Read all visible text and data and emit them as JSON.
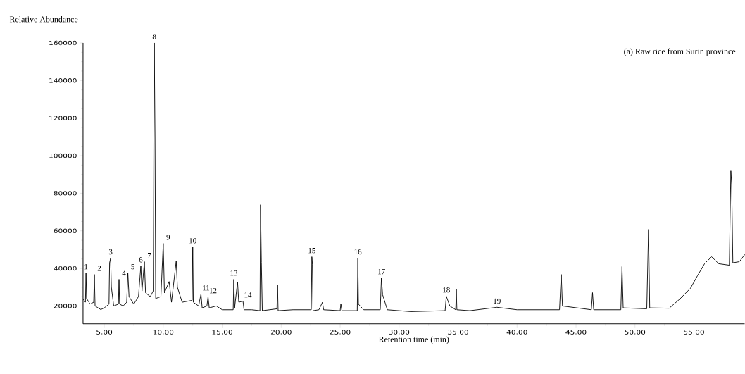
{
  "chart_data": {
    "type": "line",
    "title": "(a) Raw rice from Surin province",
    "xlabel": "Retention time (min)",
    "ylabel": "Relative Abundance",
    "xlim": [
      3.2,
      59.3
    ],
    "ylim": [
      10500,
      160000
    ],
    "xticks": [
      {
        "value": 5,
        "label": "5.00"
      },
      {
        "value": 10,
        "label": "10.00"
      },
      {
        "value": 15,
        "label": "15.00"
      },
      {
        "value": 20,
        "label": "20.00"
      },
      {
        "value": 25,
        "label": "25.00"
      },
      {
        "value": 30,
        "label": "30.00"
      },
      {
        "value": 35,
        "label": "35.00"
      },
      {
        "value": 40,
        "label": "40.00"
      },
      {
        "value": 45,
        "label": "45.00"
      },
      {
        "value": 50,
        "label": "50.00"
      },
      {
        "value": 55,
        "label": "55.00"
      }
    ],
    "yticks": [
      20000,
      40000,
      60000,
      80000,
      100000,
      120000,
      140000,
      160000
    ],
    "marker": "none",
    "line_style": "solid",
    "series": [
      {
        "color": "#000000",
        "x": [
          3.2,
          3.4,
          3.45,
          3.5,
          3.8,
          4.1,
          4.16,
          4.22,
          4.7,
          5.0,
          5.4,
          5.45,
          5.54,
          5.6,
          5.8,
          6.2,
          6.25,
          6.3,
          6.6,
          6.9,
          7.0,
          7.1,
          7.5,
          7.9,
          8.1,
          8.2,
          8.4,
          8.5,
          8.9,
          9.15,
          9.24,
          9.3,
          9.36,
          9.8,
          10.0,
          10.1,
          10.5,
          10.7,
          11.1,
          11.2,
          11.6,
          12.45,
          12.5,
          12.55,
          13.0,
          13.2,
          13.3,
          13.7,
          13.8,
          13.9,
          14.5,
          15.0,
          15.93,
          15.98,
          16.05,
          16.3,
          16.4,
          16.76,
          16.85,
          17.5,
          18.2,
          18.25,
          18.32,
          18.4,
          19.64,
          19.69,
          19.74,
          21.0,
          22.55,
          22.6,
          22.65,
          22.7,
          23.2,
          23.5,
          23.6,
          25.0,
          25.06,
          25.15,
          26.45,
          26.5,
          26.55,
          27.0,
          28.4,
          28.5,
          28.6,
          29.0,
          31.0,
          33.9,
          34.0,
          34.3,
          34.8,
          34.85,
          34.9,
          36.0,
          38.3,
          40.0,
          43.6,
          43.75,
          43.85,
          46.3,
          46.4,
          46.5,
          48.8,
          48.9,
          49.0,
          51.0,
          51.15,
          51.25,
          52.9,
          53.8,
          54.7,
          55.3,
          55.9,
          56.5,
          57.1,
          58.0,
          58.13,
          58.2,
          58.3,
          58.85,
          59.3
        ],
        "values": [
          23700,
          22000,
          37600,
          24000,
          21000,
          22000,
          36800,
          20000,
          18100,
          19000,
          21000,
          43000,
          45500,
          30000,
          20000,
          21000,
          34200,
          21000,
          20000,
          22000,
          37600,
          25000,
          21000,
          25000,
          41300,
          28000,
          43600,
          27000,
          25000,
          28000,
          160000,
          110000,
          24000,
          25000,
          53300,
          27000,
          33000,
          22000,
          44000,
          30000,
          22000,
          23000,
          51400,
          22000,
          20000,
          26400,
          19000,
          20000,
          24900,
          19000,
          20000,
          18000,
          18000,
          34200,
          19000,
          32700,
          22000,
          22600,
          18000,
          18000,
          17500,
          73900,
          43200,
          17500,
          18500,
          31200,
          17500,
          18000,
          18000,
          46200,
          42000,
          17500,
          18000,
          22000,
          18000,
          17500,
          21100,
          17500,
          17500,
          45500,
          21000,
          18000,
          18000,
          35000,
          26000,
          18000,
          17000,
          17500,
          25200,
          20000,
          18000,
          29000,
          18000,
          17500,
          19300,
          18000,
          18000,
          36800,
          20000,
          18000,
          27100,
          18000,
          18000,
          41000,
          19000,
          18500,
          60800,
          19000,
          18800,
          23700,
          29400,
          36100,
          42500,
          46200,
          42500,
          41700,
          91900,
          84700,
          43000,
          43600,
          47300
        ]
      }
    ],
    "annotations": [
      {
        "text": "1",
        "x": 3.45,
        "y": 37600
      },
      {
        "text": "2",
        "x": 4.16,
        "y": 36800
      },
      {
        "text": "3",
        "x": 5.54,
        "y": 45500
      },
      {
        "text": "4",
        "x": 6.25,
        "y": 34200
      },
      {
        "text": "5",
        "x": 7.0,
        "y": 37600
      },
      {
        "text": "6",
        "x": 8.1,
        "y": 41300
      },
      {
        "text": "7",
        "x": 8.4,
        "y": 43600
      },
      {
        "text": "8",
        "x": 9.24,
        "y": 160000
      },
      {
        "text": "9",
        "x": 10.0,
        "y": 53300
      },
      {
        "text": "10",
        "x": 12.5,
        "y": 51400
      },
      {
        "text": "11",
        "x": 13.2,
        "y": 26400
      },
      {
        "text": "12",
        "x": 13.8,
        "y": 24900
      },
      {
        "text": "13",
        "x": 15.98,
        "y": 34200
      },
      {
        "text": "14",
        "x": 16.76,
        "y": 22600
      },
      {
        "text": "15",
        "x": 22.6,
        "y": 46200
      },
      {
        "text": "16",
        "x": 26.5,
        "y": 45500
      },
      {
        "text": "17",
        "x": 28.5,
        "y": 35000
      },
      {
        "text": "18",
        "x": 34.0,
        "y": 25200
      },
      {
        "text": "19",
        "x": 38.3,
        "y": 19300
      }
    ]
  }
}
